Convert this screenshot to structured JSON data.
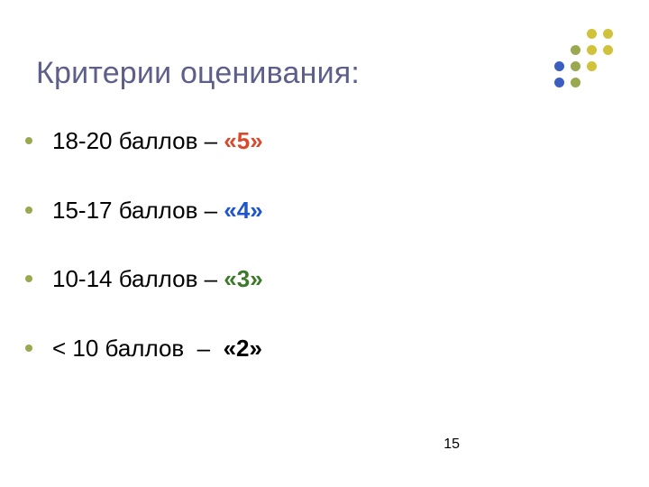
{
  "title": {
    "text": "Критерии оценивания:",
    "color": "#5e5e8b",
    "fontsize": 34
  },
  "bullet_color": "#9aa84f",
  "items": [
    {
      "label": "18-20 баллов – ",
      "grade": "«5»",
      "grade_color": "#d84a2b"
    },
    {
      "label": "15-17 баллов – ",
      "grade": "«4»",
      "grade_color": "#1f55cc"
    },
    {
      "label": "10-14 баллов – ",
      "grade": "«3»",
      "grade_color": "#3b7a2a"
    },
    {
      "label": "< 10 баллов  –  ",
      "grade": "«2»",
      "grade_color": "#000000"
    }
  ],
  "page_number": "15",
  "decoration": {
    "spacing": 18,
    "dot_radius": 5.5,
    "colors_by_column": [
      "#3b5fbf",
      "#9aa84f",
      "#d0c23a",
      "#d0c23a"
    ],
    "grid": [
      [
        0,
        0,
        1,
        1
      ],
      [
        0,
        1,
        1,
        1
      ],
      [
        1,
        1,
        1,
        0
      ],
      [
        1,
        1,
        0,
        0
      ]
    ]
  },
  "body_fontsize": 26,
  "background_color": "#ffffff"
}
